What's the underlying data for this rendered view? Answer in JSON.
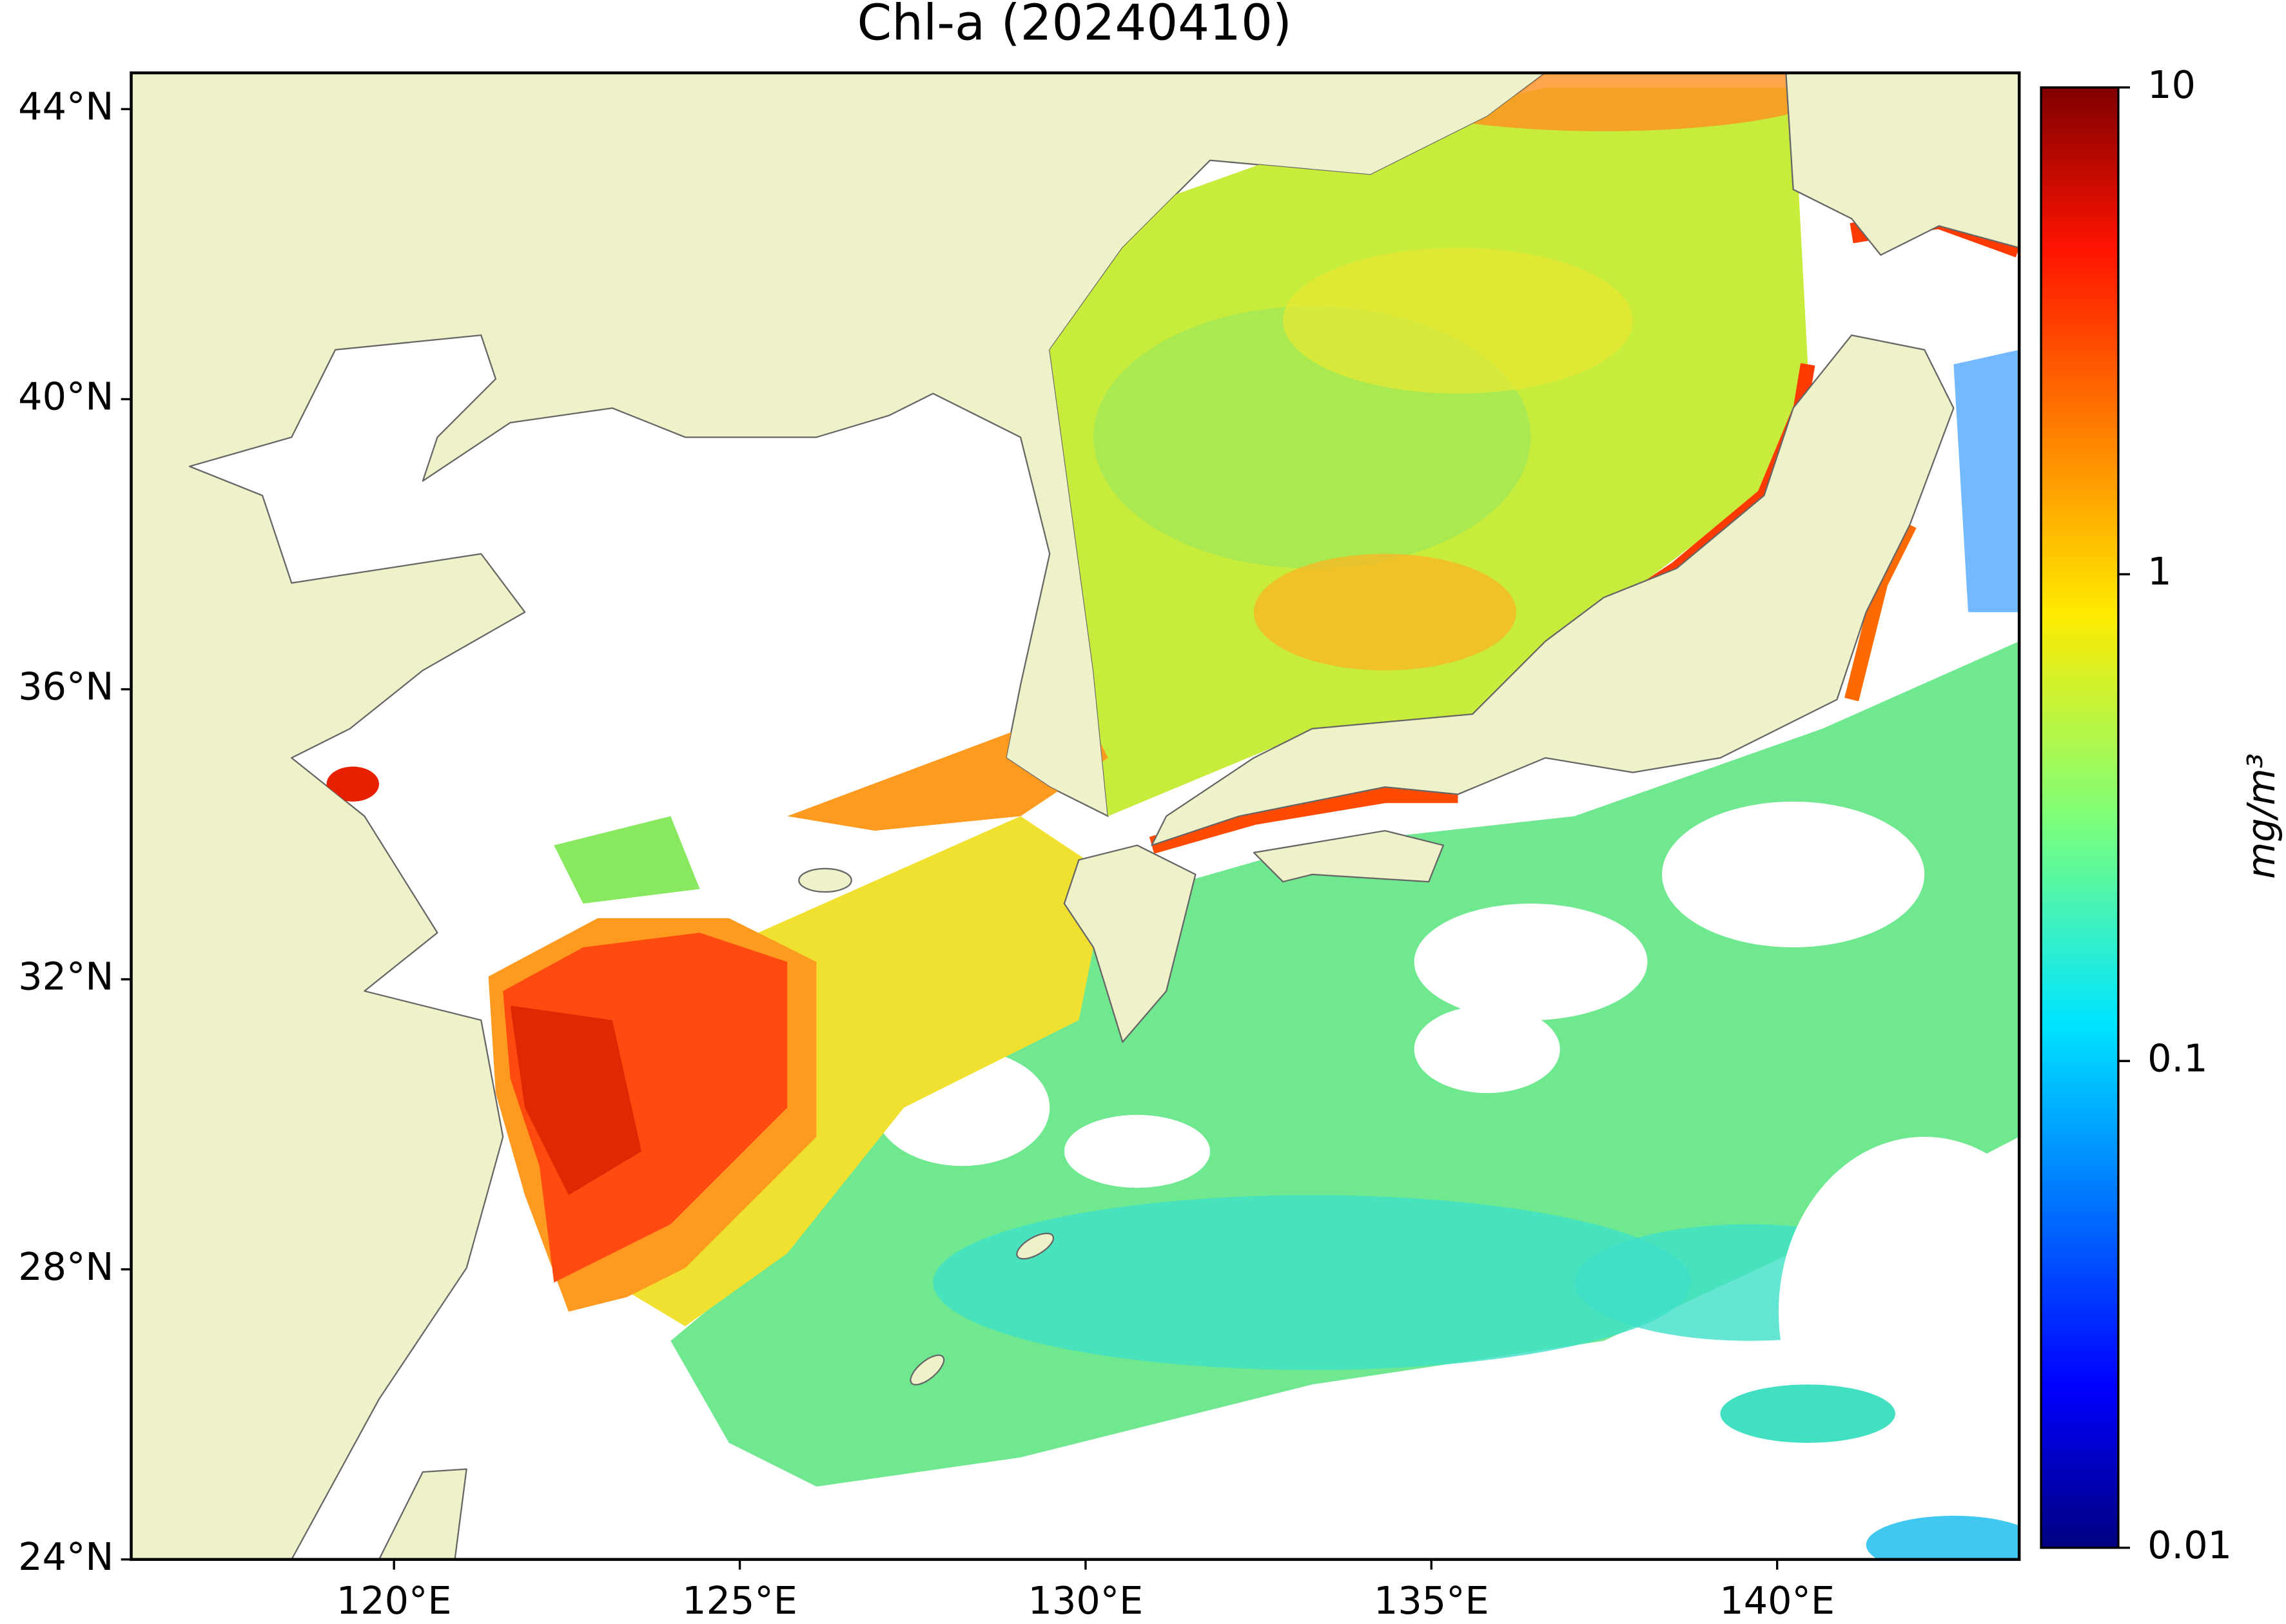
{
  "title": "Chl-a (20240410)",
  "map": {
    "xlim": [
      116.2,
      143.5
    ],
    "ylim": [
      24,
      44.5
    ],
    "xticks": [
      {
        "value": 120,
        "label": "120°E"
      },
      {
        "value": 125,
        "label": "125°E"
      },
      {
        "value": 130,
        "label": "130°E"
      },
      {
        "value": 135,
        "label": "135°E"
      },
      {
        "value": 140,
        "label": "140°E"
      }
    ],
    "yticks": [
      {
        "value": 24,
        "label": "24°N"
      },
      {
        "value": 28,
        "label": "28°N"
      },
      {
        "value": 32,
        "label": "32°N"
      },
      {
        "value": 36,
        "label": "36°N"
      },
      {
        "value": 40,
        "label": "40°N"
      },
      {
        "value": 44,
        "label": "44°N"
      }
    ]
  },
  "colorbar": {
    "scale": "log",
    "lim": [
      0.01,
      10
    ],
    "ticks": [
      0.01,
      0.1,
      1,
      10
    ],
    "label": "mg/m³",
    "colormap": "jet"
  }
}
